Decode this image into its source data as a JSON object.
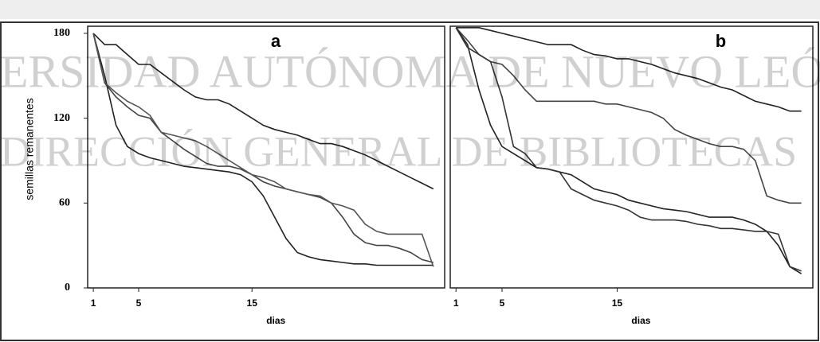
{
  "chart_data": [
    {
      "type": "line",
      "label": "a",
      "ylabel": "semillas remanentes",
      "xlabel": "dias",
      "x": [
        1,
        2,
        3,
        4,
        5,
        6,
        7,
        8,
        9,
        10,
        11,
        12,
        13,
        14,
        15,
        16,
        17,
        18,
        19,
        20,
        21,
        22,
        23,
        24,
        25,
        26,
        27,
        28,
        29,
        30,
        31
      ],
      "xlim": [
        0.5,
        32
      ],
      "xticks": [
        1,
        5,
        15
      ],
      "ylim": [
        0,
        185
      ],
      "yticks": [
        0,
        60,
        120,
        180
      ],
      "series": [
        {
          "color": "#222222",
          "values": [
            180,
            172,
            172,
            165,
            158,
            158,
            152,
            146,
            140,
            135,
            133,
            133,
            130,
            125,
            120,
            115,
            112,
            110,
            108,
            105,
            102,
            102,
            100,
            97,
            94,
            90,
            86,
            82,
            78,
            74,
            70
          ]
        },
        {
          "color": "#222222",
          "values": [
            180,
            150,
            115,
            100,
            95,
            92,
            90,
            88,
            86,
            85,
            84,
            83,
            82,
            80,
            75,
            65,
            50,
            35,
            25,
            22,
            20,
            19,
            18,
            17,
            17,
            16,
            16,
            16,
            16,
            16,
            16
          ]
        },
        {
          "color": "#444444",
          "values": [
            180,
            145,
            135,
            128,
            122,
            120,
            110,
            104,
            98,
            93,
            88,
            86,
            86,
            84,
            80,
            75,
            72,
            70,
            68,
            66,
            64,
            60,
            50,
            38,
            32,
            30,
            30,
            28,
            25,
            20,
            18
          ]
        },
        {
          "color": "#555555",
          "values": [
            180,
            145,
            138,
            132,
            128,
            122,
            110,
            108,
            106,
            104,
            100,
            95,
            90,
            85,
            80,
            78,
            75,
            70,
            68,
            66,
            65,
            60,
            58,
            55,
            45,
            40,
            38,
            38,
            38,
            38,
            15
          ]
        }
      ]
    },
    {
      "type": "line",
      "label": "b",
      "xlabel": "dias",
      "x": [
        1,
        2,
        3,
        4,
        5,
        6,
        7,
        8,
        9,
        10,
        11,
        12,
        13,
        14,
        15,
        16,
        17,
        18,
        19,
        20,
        21,
        22,
        23,
        24,
        25,
        26,
        27,
        28,
        29,
        30,
        31
      ],
      "xlim": [
        0.5,
        32
      ],
      "xticks": [
        1,
        5,
        15
      ],
      "ylim": [
        0,
        185
      ],
      "series": [
        {
          "color": "#222222",
          "values": [
            184,
            184,
            184,
            182,
            180,
            178,
            176,
            174,
            172,
            172,
            172,
            168,
            165,
            164,
            162,
            162,
            160,
            158,
            155,
            152,
            150,
            148,
            145,
            142,
            140,
            136,
            132,
            130,
            128,
            125,
            125
          ]
        },
        {
          "color": "#444444",
          "values": [
            184,
            175,
            165,
            160,
            158,
            150,
            140,
            132,
            132,
            132,
            132,
            132,
            132,
            130,
            130,
            128,
            126,
            124,
            120,
            112,
            108,
            105,
            102,
            100,
            100,
            98,
            90,
            65,
            62,
            60,
            60
          ]
        },
        {
          "color": "#222222",
          "values": [
            184,
            172,
            140,
            115,
            100,
            95,
            90,
            85,
            84,
            82,
            80,
            75,
            70,
            68,
            66,
            62,
            60,
            58,
            56,
            55,
            54,
            52,
            50,
            50,
            50,
            48,
            45,
            40,
            30,
            15,
            10
          ]
        },
        {
          "color": "#333333",
          "values": [
            184,
            170,
            165,
            160,
            135,
            100,
            95,
            85,
            84,
            82,
            70,
            66,
            62,
            60,
            58,
            55,
            50,
            48,
            48,
            48,
            47,
            45,
            44,
            42,
            42,
            41,
            40,
            40,
            38,
            15,
            12
          ]
        }
      ]
    }
  ],
  "watermark": [
    "ERSIDAD AUTÓNOMA DE NUEVO LEÓ",
    "DIRECCIÓN GENERAL DE BIBLIOTECAS"
  ]
}
